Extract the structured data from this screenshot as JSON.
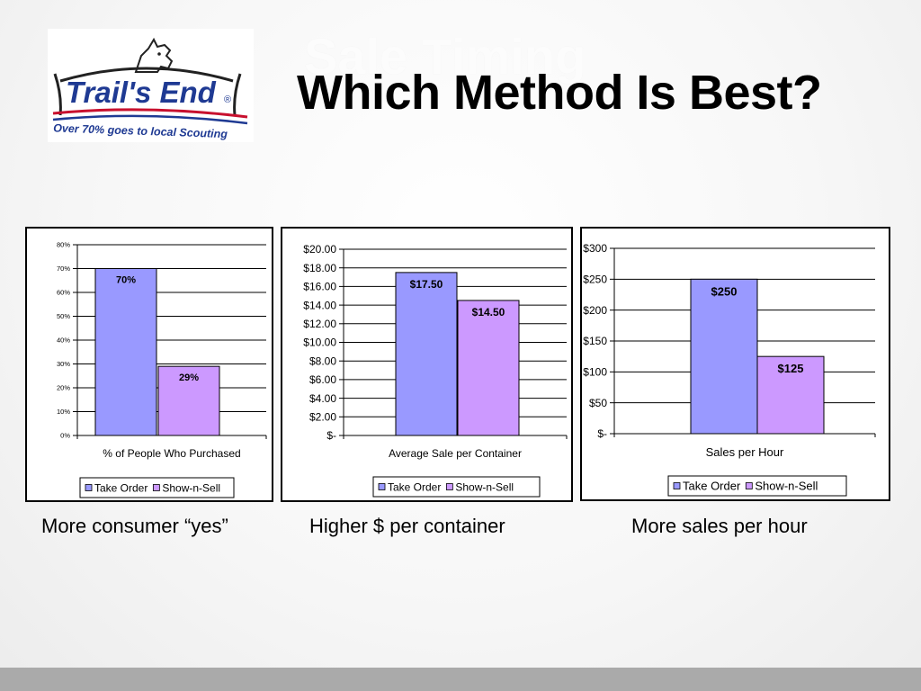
{
  "slide": {
    "ghost_title": "Sale Timing",
    "title": "Which Method Is Best?"
  },
  "logo": {
    "brand": "Trail's End",
    "registered": "®",
    "tagline": "Over 70% goes to local Scouting",
    "colors": {
      "red": "#c8102e",
      "blue": "#1f3a93",
      "dark": "#222222"
    }
  },
  "colors": {
    "take_order": "#9999ff",
    "show_n_sell": "#cc99ff",
    "gridline": "#000000",
    "footer_bar": "#aaaaaa"
  },
  "captions": [
    "More consumer “yes”",
    "Higher $ per container",
    "More sales per hour"
  ],
  "chart_data": [
    {
      "type": "bar",
      "categories": [
        "% of People Who Purchased"
      ],
      "series": [
        {
          "name": "Take Order",
          "values": [
            70
          ],
          "label": "70%"
        },
        {
          "name": "Show-n-Sell",
          "values": [
            29
          ],
          "label": "29%"
        }
      ],
      "xlabel": "",
      "ylabel": "",
      "ylim": [
        0,
        80
      ],
      "yticks": [
        0,
        10,
        20,
        30,
        40,
        50,
        60,
        70,
        80
      ],
      "ytick_labels": [
        "0%",
        "10%",
        "20%",
        "30%",
        "40%",
        "50%",
        "60%",
        "70%",
        "80%"
      ],
      "grid": true,
      "legend": "bottom"
    },
    {
      "type": "bar",
      "categories": [
        "Average Sale per Container"
      ],
      "series": [
        {
          "name": "Take Order",
          "values": [
            17.5
          ],
          "label": "$17.50"
        },
        {
          "name": "Show-n-Sell",
          "values": [
            14.5
          ],
          "label": "$14.50"
        }
      ],
      "xlabel": "",
      "ylabel": "",
      "ylim": [
        0,
        20
      ],
      "yticks": [
        0,
        2,
        4,
        6,
        8,
        10,
        12,
        14,
        16,
        18,
        20
      ],
      "ytick_labels": [
        "$-",
        "$2.00",
        "$4.00",
        "$6.00",
        "$8.00",
        "$10.00",
        "$12.00",
        "$14.00",
        "$16.00",
        "$18.00",
        "$20.00"
      ],
      "grid": true,
      "legend": "bottom"
    },
    {
      "type": "bar",
      "categories": [
        "Sales per Hour"
      ],
      "series": [
        {
          "name": "Take Order",
          "values": [
            250
          ],
          "label": "$250"
        },
        {
          "name": "Show-n-Sell",
          "values": [
            125
          ],
          "label": "$125"
        }
      ],
      "xlabel": "",
      "ylabel": "",
      "ylim": [
        0,
        300
      ],
      "yticks": [
        0,
        50,
        100,
        150,
        200,
        250,
        300
      ],
      "ytick_labels": [
        "$-",
        "$50",
        "$100",
        "$150",
        "$200",
        "$250",
        "$300"
      ],
      "grid": true,
      "legend": "bottom"
    }
  ]
}
